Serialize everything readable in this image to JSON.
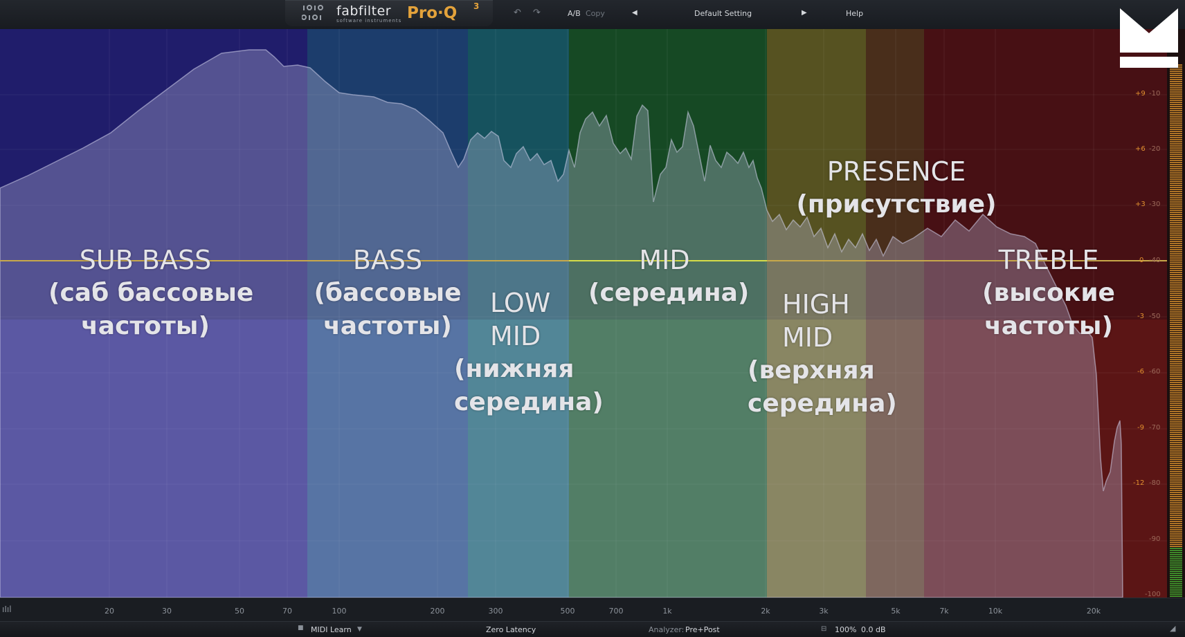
{
  "window": {
    "brand": "fabfilter",
    "brand_sub": "software instruments",
    "product": "Pro·Q",
    "product_version": "3"
  },
  "toolbar": {
    "undo_icon": "undo-icon",
    "redo_icon": "redo-icon",
    "ab_label": "A/B",
    "copy_label": "Copy",
    "prev_icon": "triangle-left-icon",
    "preset_name": "Default Setting",
    "next_icon": "triangle-right-icon",
    "help_label": "Help"
  },
  "bands": [
    {
      "id": "sub-bass",
      "color": "#2a2685",
      "label_en": "SUB BASS",
      "label_ru": [
        "(саб бассовые",
        "частоты)"
      ]
    },
    {
      "id": "bass",
      "color": "#244f86",
      "label_en": "BASS",
      "label_ru": [
        "(бассовые",
        "частоты)"
      ]
    },
    {
      "id": "low-mid",
      "color": "#1d6a74",
      "label_en": [
        "LOW",
        "MID"
      ],
      "label_ru": [
        "(нижняя",
        "середина)"
      ]
    },
    {
      "id": "mid",
      "color": "#1d5e2a",
      "label_en": "MID",
      "label_ru": [
        "(середина)"
      ]
    },
    {
      "id": "high-mid",
      "color": "#6f6a26",
      "label_en": [
        "HIGH",
        "MID"
      ],
      "label_ru": [
        "(верхняя",
        "середина)"
      ]
    },
    {
      "id": "presence",
      "color": "#5e3c1e",
      "label_en": "PRESENCE",
      "label_ru": [
        "(присутствие)"
      ]
    },
    {
      "id": "treble",
      "color": "#5b1515",
      "label_en": "TREBLE",
      "label_ru": [
        "(высокие",
        "частоты)"
      ]
    }
  ],
  "gain_scale": [
    "+9",
    "+6",
    "+3",
    "0",
    "-3",
    "-6",
    "-9",
    "-12"
  ],
  "db_scale": [
    "-10",
    "-20",
    "-30",
    "-40",
    "-50",
    "-60",
    "-70",
    "-80",
    "-90",
    "-100"
  ],
  "freq_axis": [
    "20",
    "30",
    "50",
    "70",
    "100",
    "200",
    "300",
    "500",
    "700",
    "1k",
    "2k",
    "3k",
    "5k",
    "7k",
    "10k",
    "20k"
  ],
  "status": {
    "settings_icon": "bars-icon",
    "midi_learn": "MIDI Learn",
    "dropdown_icon": "chevron-down-icon",
    "latency": "Zero Latency",
    "analyzer_label": "Analyzer:",
    "analyzer_value": "Pre+Post",
    "zoom": "100%",
    "output_gain": "0.0 dB",
    "resize_icon": "resize-icon"
  },
  "colors": {
    "accent_orange": "#e3a23b",
    "zero_line": "#c8d048"
  }
}
